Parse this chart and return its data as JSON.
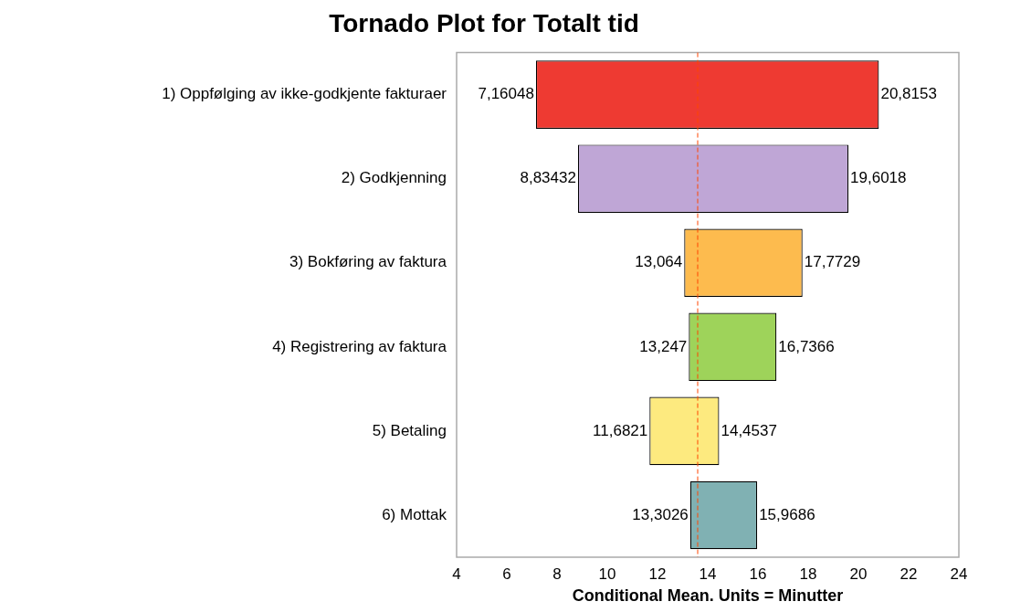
{
  "chart_data": {
    "type": "bar",
    "orientation": "horizontal",
    "title": "Tornado Plot for Totalt tid",
    "xlabel": "Conditional Mean. Units = Minutter",
    "categories": [
      "1) Oppfølging av ikke-godkjente fakturaer",
      "2) Godkjenning",
      "3) Bokføring av faktura",
      "4) Registrering av faktura",
      "5) Betaling",
      "6) Mottak"
    ],
    "base": [
      7.16048,
      8.83432,
      13.064,
      13.247,
      11.6821,
      13.3026
    ],
    "values": [
      13.65482,
      10.76748,
      4.7089,
      3.4896,
      2.7716,
      2.666
    ],
    "colors": [
      "#ee3a32",
      "#bfa6d6",
      "#fdbb4e",
      "#9ed35a",
      "#fdea7f",
      "#80b1b3"
    ],
    "xlim": [
      4,
      24
    ],
    "xticks": [
      4,
      6,
      8,
      10,
      12,
      14,
      16,
      18,
      20,
      22,
      24
    ],
    "ref_lines": [
      {
        "axis": "x",
        "value": 13.6,
        "color": "#ff4500",
        "line_style": "dashed"
      }
    ],
    "annotations": [
      {
        "text": "7,16048",
        "x": 7.16048,
        "y": "1) Oppfølging av ikke-godkjente fakturaer"
      },
      {
        "text": "20,8153",
        "x": 20.8153,
        "y": "1) Oppfølging av ikke-godkjente fakturaer"
      },
      {
        "text": "8,83432",
        "x": 8.83432,
        "y": "2) Godkjenning"
      },
      {
        "text": "19,6018",
        "x": 19.6018,
        "y": "2) Godkjenning"
      },
      {
        "text": "13,064",
        "x": 13.064,
        "y": "3) Bokføring av faktura"
      },
      {
        "text": "17,7729",
        "x": 17.7729,
        "y": "3) Bokføring av faktura"
      },
      {
        "text": "13,247",
        "x": 13.247,
        "y": "4) Registrering av faktura"
      },
      {
        "text": "16,7366",
        "x": 16.7366,
        "y": "4) Registrering av faktura"
      },
      {
        "text": "11,6821",
        "x": 11.6821,
        "y": "5) Betaling"
      },
      {
        "text": "14,4537",
        "x": 14.4537,
        "y": "5) Betaling"
      },
      {
        "text": "13,3026",
        "x": 13.3026,
        "y": "6) Mottak"
      },
      {
        "text": "15,9686",
        "x": 15.9686,
        "y": "6) Mottak"
      }
    ],
    "grid": false,
    "legend": false
  }
}
